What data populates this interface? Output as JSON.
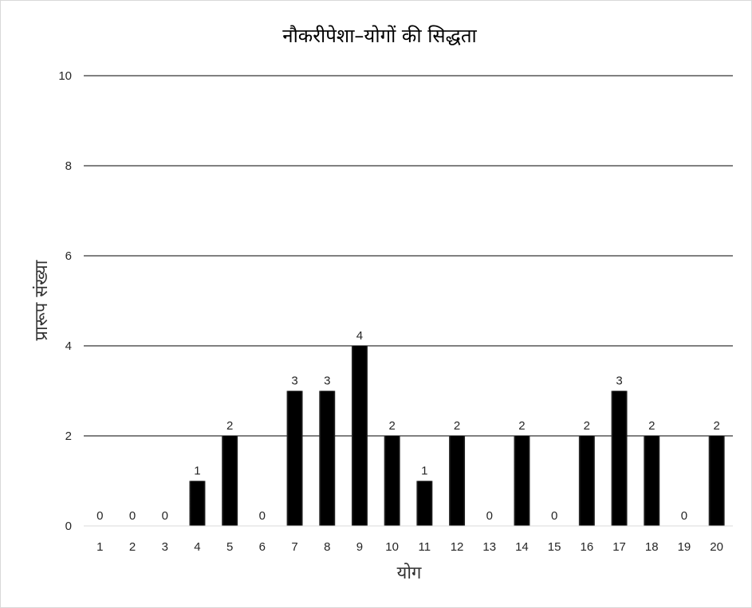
{
  "chart_data": {
    "type": "bar",
    "title": "नौकरीपेशा–योगों की सिद्धता",
    "xlabel": "योग",
    "ylabel": "प्रारूप संख्या",
    "categories": [
      "1",
      "2",
      "3",
      "4",
      "5",
      "6",
      "7",
      "8",
      "9",
      "10",
      "11",
      "12",
      "13",
      "14",
      "15",
      "16",
      "17",
      "18",
      "19",
      "20"
    ],
    "values": [
      0,
      0,
      0,
      1,
      2,
      0,
      3,
      3,
      4,
      2,
      1,
      2,
      0,
      2,
      0,
      2,
      3,
      2,
      0,
      2
    ],
    "ylim": [
      0,
      10
    ],
    "yticks": [
      0,
      2,
      4,
      6,
      8,
      10
    ],
    "grid": true,
    "legend": "none",
    "bar_color": "#000000",
    "gridline_color": "#000000"
  }
}
